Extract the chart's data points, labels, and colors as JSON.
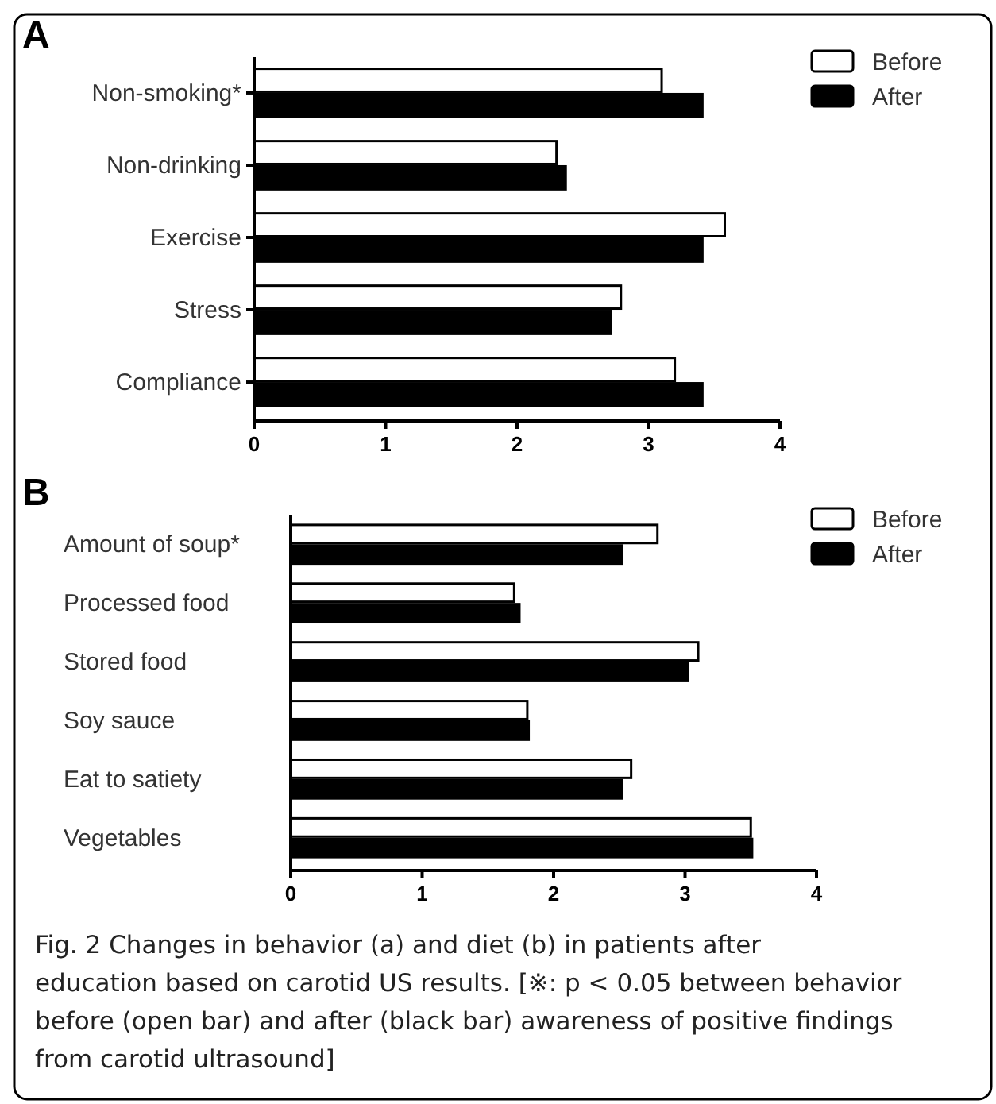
{
  "chart_data": [
    {
      "type": "bar",
      "orientation": "horizontal",
      "title": "A",
      "categories": [
        "Non-smoking*",
        "Non-drinking",
        "Exercise",
        "Stress",
        "Compliance"
      ],
      "series": [
        {
          "name": "Before",
          "color": "#ffffff",
          "values": [
            3.1,
            2.3,
            3.58,
            2.79,
            3.2
          ]
        },
        {
          "name": "After",
          "color": "#000000",
          "values": [
            3.41,
            2.37,
            3.41,
            2.71,
            3.41
          ]
        }
      ],
      "xlim": [
        0,
        4
      ],
      "xticks": [
        0,
        1,
        2,
        3,
        4
      ],
      "legend": "top right",
      "grid": false
    },
    {
      "type": "bar",
      "orientation": "horizontal",
      "title": "B",
      "categories": [
        "Amount of soup*",
        "Processed food",
        "Stored food",
        "Soy sauce",
        "Eat to satiety",
        "Vegetables"
      ],
      "series": [
        {
          "name": "Before",
          "color": "#ffffff",
          "values": [
            2.79,
            1.7,
            3.1,
            1.8,
            2.59,
            3.5
          ]
        },
        {
          "name": "After",
          "color": "#000000",
          "values": [
            2.52,
            1.74,
            3.02,
            1.81,
            2.52,
            3.51
          ]
        }
      ],
      "xlim": [
        0,
        4
      ],
      "xticks": [
        0,
        1,
        2,
        3,
        4
      ],
      "legend": "top right",
      "grid": false,
      "annotations": [
        "Fig. 2 Changes in behavior (a) and diet (b) in patients after education based on carotid US results. [※: p < 0.05 between behavior before (open bar) and after (black bar) awareness of positive findings from carotid ultrasound]"
      ]
    }
  ]
}
